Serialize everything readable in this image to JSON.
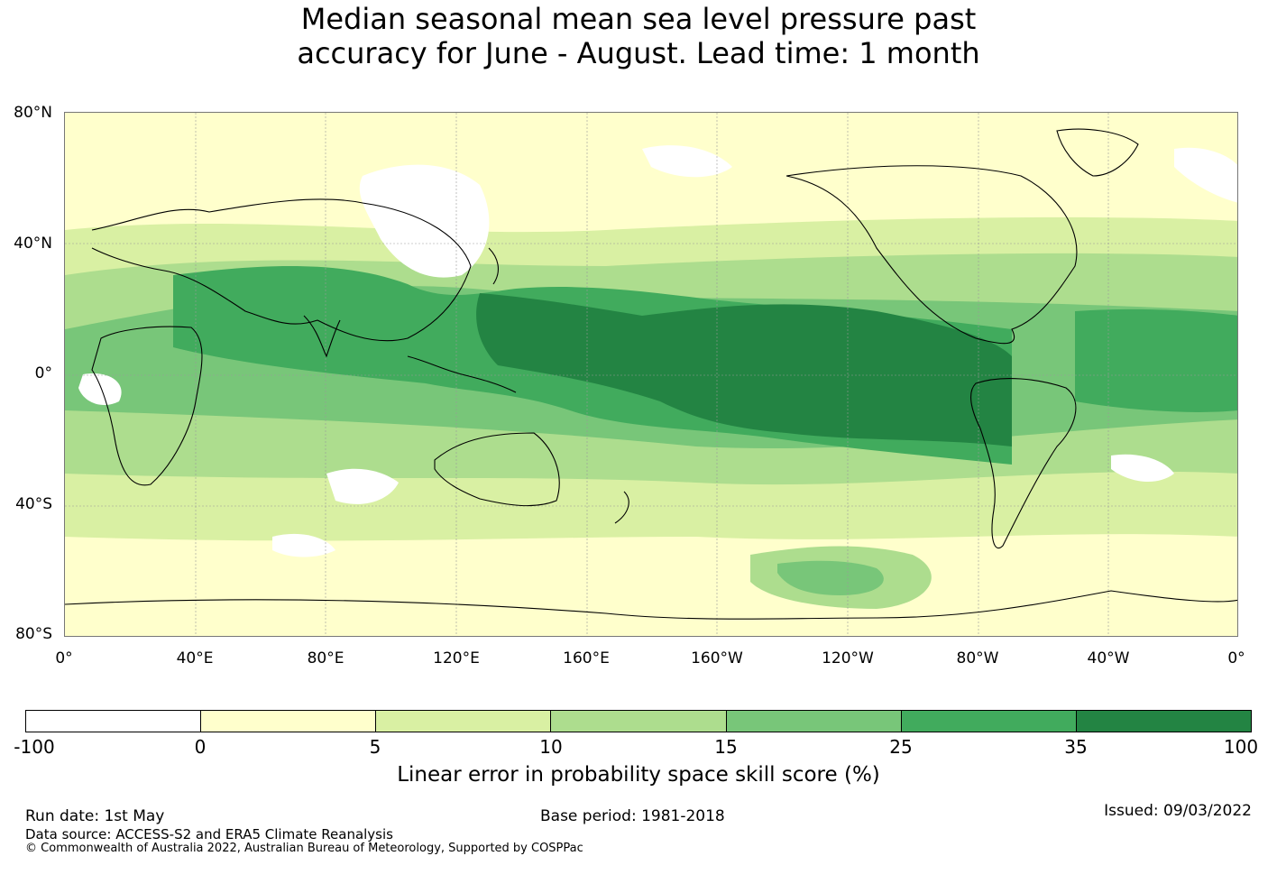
{
  "title": {
    "line1": "Median seasonal mean sea level pressure past",
    "line2": "accuracy for June - August. Lead time: 1 month"
  },
  "map": {
    "lat_labels": [
      "80°N",
      "40°N",
      "0°",
      "40°S",
      "80°S"
    ],
    "lon_labels": [
      "0°",
      "40°E",
      "80°E",
      "120°E",
      "160°E",
      "160°W",
      "120°W",
      "80°W",
      "40°W",
      "0°"
    ],
    "background_color": "#ffffcc",
    "coastline_color": "#000000"
  },
  "colorbar": {
    "ticks": [
      "-100",
      "0",
      "5",
      "10",
      "15",
      "25",
      "35",
      "100"
    ],
    "colors": [
      "#ffffff",
      "#ffffcc",
      "#d9f0a3",
      "#addd8e",
      "#78c679",
      "#41ab5d",
      "#238443"
    ],
    "label": "Linear error in probability space skill score (%)"
  },
  "footer": {
    "run_date": "Run date: 1st May",
    "base_period": "Base period: 1981-2018",
    "issued": "Issued: 09/03/2022",
    "data_source": "Data source: ACCESS-S2 and ERA5 Climate Reanalysis",
    "copyright": "© Commonwealth of Australia 2022, Australian Bureau of Meteorology, Supported by COSPPac"
  }
}
